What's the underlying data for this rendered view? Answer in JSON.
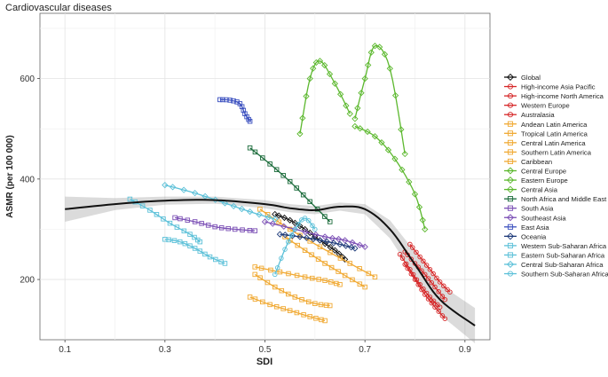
{
  "chart_data": {
    "type": "scatter",
    "title": "Cardiovascular diseases",
    "xlabel": "SDI",
    "ylabel": "ASMR (per 100 000)",
    "xlim": [
      0.05,
      0.95
    ],
    "ylim": [
      80,
      730
    ],
    "xticks": [
      0.1,
      0.3,
      0.5,
      0.7,
      0.9
    ],
    "xtick_labels": [
      "0.1",
      "0.3",
      "0.5",
      "0.7",
      "0.9"
    ],
    "yticks": [
      200,
      400,
      600
    ],
    "ytick_labels": [
      "200",
      "400",
      "600"
    ],
    "grid": true,
    "legend_position": "right",
    "series": [
      {
        "name": "Global",
        "color": "#111111",
        "marker": "diamond",
        "points": [
          [
            0.52,
            330
          ],
          [
            0.55,
            318
          ],
          [
            0.58,
            300
          ],
          [
            0.61,
            278
          ],
          [
            0.64,
            258
          ],
          [
            0.66,
            240
          ]
        ]
      },
      {
        "name": "High-income Asia Pacific",
        "color": "#d62728",
        "marker": "circle",
        "points": [
          [
            0.79,
            270
          ],
          [
            0.81,
            245
          ],
          [
            0.83,
            220
          ],
          [
            0.85,
            195
          ],
          [
            0.87,
            175
          ]
        ]
      },
      {
        "name": "High-income North America",
        "color": "#d62728",
        "marker": "circle",
        "points": [
          [
            0.78,
            255
          ],
          [
            0.8,
            232
          ],
          [
            0.82,
            210
          ],
          [
            0.84,
            185
          ],
          [
            0.86,
            160
          ]
        ]
      },
      {
        "name": "Western Europe",
        "color": "#d62728",
        "marker": "circle",
        "points": [
          [
            0.77,
            250
          ],
          [
            0.79,
            220
          ],
          [
            0.81,
            190
          ],
          [
            0.83,
            165
          ],
          [
            0.85,
            145
          ]
        ]
      },
      {
        "name": "Australasia",
        "color": "#d62728",
        "marker": "circle",
        "points": [
          [
            0.78,
            230
          ],
          [
            0.8,
            200
          ],
          [
            0.82,
            170
          ],
          [
            0.84,
            145
          ],
          [
            0.86,
            122
          ]
        ]
      },
      {
        "name": "Andean Latin America",
        "color": "#f0a830",
        "marker": "square",
        "points": [
          [
            0.48,
            210
          ],
          [
            0.52,
            185
          ],
          [
            0.56,
            165
          ],
          [
            0.6,
            152
          ],
          [
            0.63,
            148
          ]
        ]
      },
      {
        "name": "Tropical Latin America",
        "color": "#f0a830",
        "marker": "square",
        "points": [
          [
            0.47,
            165
          ],
          [
            0.51,
            150
          ],
          [
            0.55,
            138
          ],
          [
            0.59,
            126
          ],
          [
            0.62,
            118
          ]
        ]
      },
      {
        "name": "Central Latin America",
        "color": "#f0a830",
        "marker": "square",
        "points": [
          [
            0.48,
            225
          ],
          [
            0.53,
            215
          ],
          [
            0.58,
            205
          ],
          [
            0.62,
            198
          ],
          [
            0.65,
            190
          ]
        ]
      },
      {
        "name": "Southern Latin America",
        "color": "#f0a830",
        "marker": "square",
        "points": [
          [
            0.54,
            285
          ],
          [
            0.58,
            258
          ],
          [
            0.62,
            232
          ],
          [
            0.66,
            208
          ],
          [
            0.7,
            185
          ]
        ]
      },
      {
        "name": "Caribbean",
        "color": "#f0a830",
        "marker": "square",
        "points": [
          [
            0.49,
            340
          ],
          [
            0.55,
            300
          ],
          [
            0.61,
            265
          ],
          [
            0.67,
            232
          ],
          [
            0.72,
            205
          ]
        ]
      },
      {
        "name": "Central Europe",
        "color": "#5cb82e",
        "marker": "diamond",
        "points": [
          [
            0.68,
            505
          ],
          [
            0.72,
            485
          ],
          [
            0.76,
            440
          ],
          [
            0.8,
            370
          ],
          [
            0.82,
            300
          ]
        ]
      },
      {
        "name": "Eastern Europe",
        "color": "#5cb82e",
        "marker": "diamond",
        "points": [
          [
            0.68,
            520
          ],
          [
            0.7,
            600
          ],
          [
            0.72,
            665
          ],
          [
            0.75,
            620
          ],
          [
            0.78,
            450
          ]
        ]
      },
      {
        "name": "Central Asia",
        "color": "#5cb82e",
        "marker": "diamond",
        "points": [
          [
            0.57,
            490
          ],
          [
            0.59,
            600
          ],
          [
            0.61,
            635
          ],
          [
            0.64,
            590
          ],
          [
            0.67,
            530
          ]
        ]
      },
      {
        "name": "North Africa and Middle East",
        "color": "#1a6b3a",
        "marker": "square",
        "points": [
          [
            0.47,
            462
          ],
          [
            0.51,
            430
          ],
          [
            0.55,
            395
          ],
          [
            0.59,
            355
          ],
          [
            0.63,
            315
          ]
        ]
      },
      {
        "name": "South Asia",
        "color": "#7b4fb5",
        "marker": "square",
        "points": [
          [
            0.32,
            323
          ],
          [
            0.36,
            315
          ],
          [
            0.4,
            305
          ],
          [
            0.44,
            300
          ],
          [
            0.48,
            297
          ]
        ]
      },
      {
        "name": "Southeast Asia",
        "color": "#7b4fb5",
        "marker": "diamond",
        "points": [
          [
            0.5,
            315
          ],
          [
            0.56,
            300
          ],
          [
            0.62,
            285
          ],
          [
            0.66,
            278
          ],
          [
            0.7,
            265
          ]
        ]
      },
      {
        "name": "East Asia",
        "color": "#3a4fbf",
        "marker": "square",
        "points": [
          [
            0.41,
            558
          ],
          [
            0.43,
            557
          ],
          [
            0.45,
            550
          ],
          [
            0.46,
            530
          ],
          [
            0.47,
            515
          ]
        ]
      },
      {
        "name": "Oceania",
        "color": "#1f3b7a",
        "marker": "diamond",
        "points": [
          [
            0.53,
            290
          ],
          [
            0.57,
            285
          ],
          [
            0.61,
            278
          ],
          [
            0.65,
            270
          ],
          [
            0.68,
            262
          ]
        ]
      },
      {
        "name": "Western Sub-Saharan Africa",
        "color": "#5bc0d8",
        "marker": "square",
        "points": [
          [
            0.3,
            280
          ],
          [
            0.33,
            275
          ],
          [
            0.36,
            262
          ],
          [
            0.39,
            245
          ],
          [
            0.42,
            232
          ]
        ]
      },
      {
        "name": "Eastern Sub-Saharan Africa",
        "color": "#5bc0d8",
        "marker": "square",
        "points": [
          [
            0.23,
            360
          ],
          [
            0.27,
            338
          ],
          [
            0.31,
            312
          ],
          [
            0.35,
            290
          ],
          [
            0.37,
            275
          ]
        ]
      },
      {
        "name": "Central Sub-Saharan Africa",
        "color": "#5bc0d8",
        "marker": "diamond",
        "points": [
          [
            0.3,
            388
          ],
          [
            0.36,
            372
          ],
          [
            0.42,
            352
          ],
          [
            0.47,
            335
          ],
          [
            0.52,
            320
          ]
        ]
      },
      {
        "name": "Southern Sub-Saharan Africa",
        "color": "#5bc0d8",
        "marker": "circle",
        "points": [
          [
            0.52,
            210
          ],
          [
            0.54,
            260
          ],
          [
            0.56,
            300
          ],
          [
            0.58,
            322
          ],
          [
            0.6,
            300
          ]
        ]
      }
    ],
    "global_trend": {
      "name": "Global",
      "x": [
        0.1,
        0.2,
        0.3,
        0.4,
        0.5,
        0.55,
        0.6,
        0.65,
        0.7,
        0.75,
        0.8,
        0.85,
        0.92
      ],
      "y": [
        340,
        350,
        357,
        358,
        350,
        342,
        338,
        345,
        340,
        300,
        230,
        160,
        108
      ],
      "band_halfwidth": [
        25,
        12,
        8,
        7,
        8,
        8,
        8,
        8,
        10,
        18,
        25,
        30,
        35
      ]
    }
  }
}
